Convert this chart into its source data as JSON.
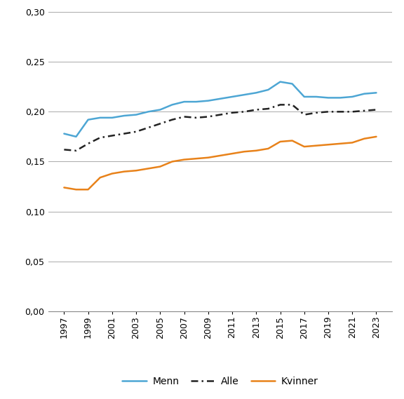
{
  "years": [
    1997,
    1998,
    1999,
    2000,
    2001,
    2002,
    2003,
    2004,
    2005,
    2006,
    2007,
    2008,
    2009,
    2010,
    2011,
    2012,
    2013,
    2014,
    2015,
    2016,
    2017,
    2018,
    2019,
    2020,
    2021,
    2022,
    2023
  ],
  "menn": [
    0.178,
    0.175,
    0.192,
    0.194,
    0.194,
    0.196,
    0.197,
    0.2,
    0.202,
    0.207,
    0.21,
    0.21,
    0.211,
    0.213,
    0.215,
    0.217,
    0.219,
    0.222,
    0.23,
    0.228,
    0.215,
    0.215,
    0.214,
    0.214,
    0.215,
    0.218,
    0.219
  ],
  "alle": [
    0.162,
    0.161,
    0.168,
    0.174,
    0.176,
    0.178,
    0.18,
    0.184,
    0.188,
    0.192,
    0.195,
    0.194,
    0.195,
    0.197,
    0.199,
    0.2,
    0.202,
    0.203,
    0.207,
    0.207,
    0.197,
    0.199,
    0.2,
    0.2,
    0.2,
    0.201,
    0.202
  ],
  "kvinner": [
    0.124,
    0.122,
    0.122,
    0.134,
    0.138,
    0.14,
    0.141,
    0.143,
    0.145,
    0.15,
    0.152,
    0.153,
    0.154,
    0.156,
    0.158,
    0.16,
    0.161,
    0.163,
    0.17,
    0.171,
    0.165,
    0.166,
    0.167,
    0.168,
    0.169,
    0.173,
    0.175
  ],
  "menn_color": "#4da6d4",
  "alle_color": "#222222",
  "kvinner_color": "#e8821a",
  "ylim": [
    0.0,
    0.3
  ],
  "yticks": [
    0.0,
    0.05,
    0.1,
    0.15,
    0.2,
    0.25,
    0.3
  ],
  "xtick_years": [
    1997,
    1999,
    2001,
    2003,
    2005,
    2007,
    2009,
    2011,
    2013,
    2015,
    2017,
    2019,
    2021,
    2023
  ],
  "legend_labels": [
    "Menn",
    "Alle",
    "Kvinner"
  ],
  "background_color": "#ffffff",
  "grid_color": "#aaaaaa",
  "spine_color": "#888888"
}
